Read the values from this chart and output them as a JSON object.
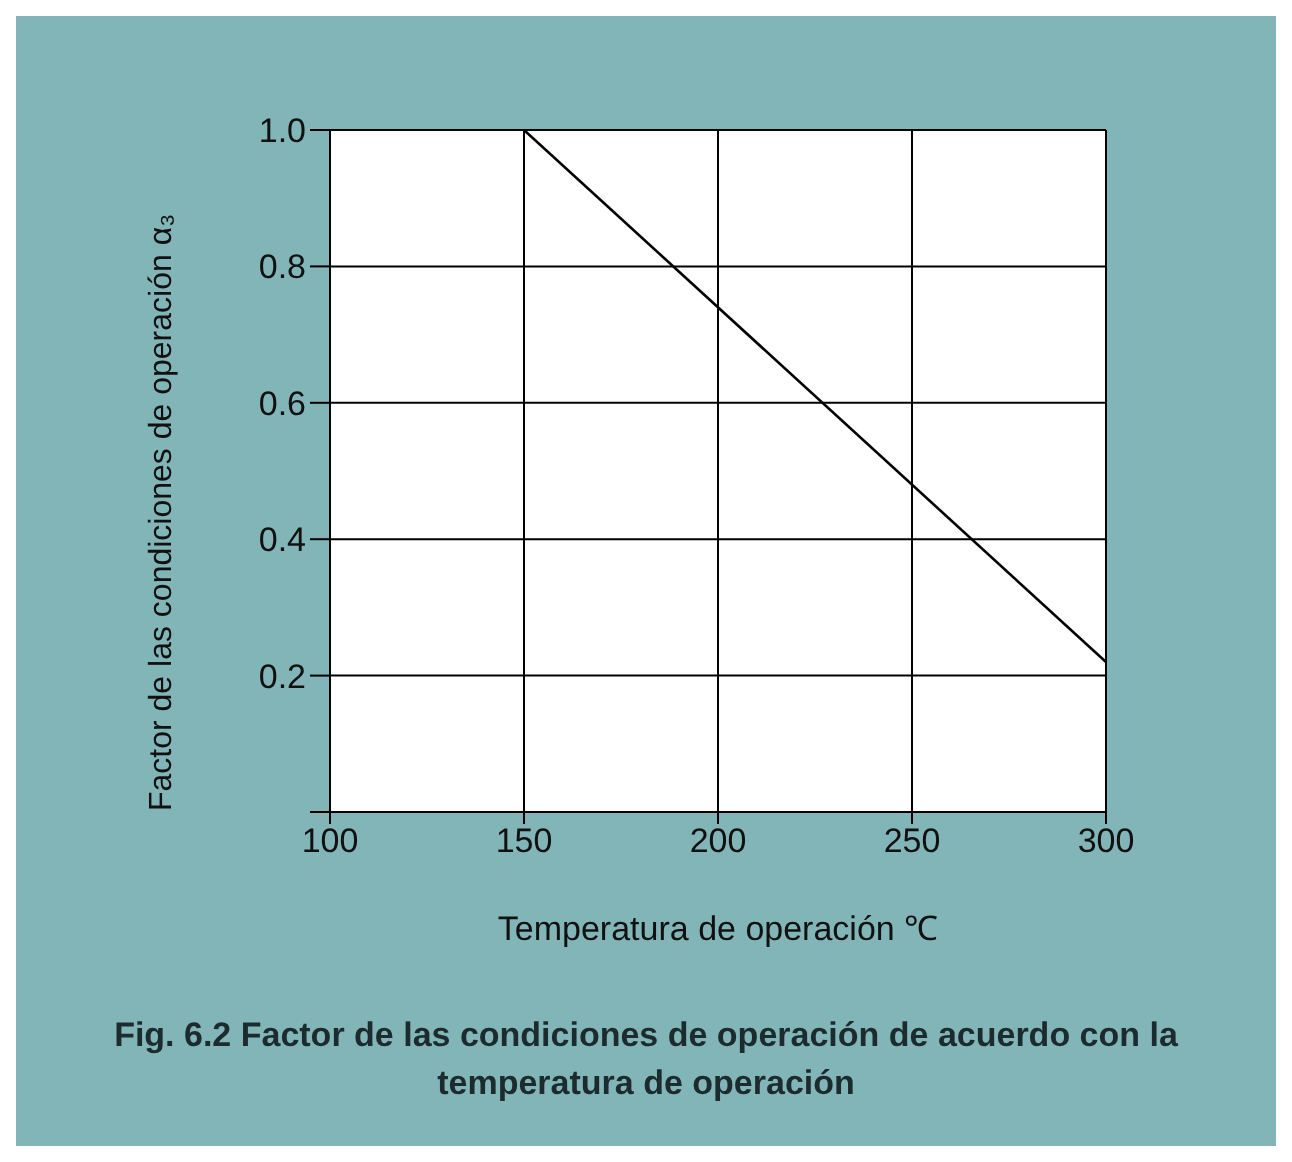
{
  "chart_data": {
    "type": "line",
    "title": "Fig. 6.2 Factor de las condiciones de operación de acuerdo con la temperatura de operación",
    "xlabel": "Temperatura de operación ℃",
    "ylabel": "Factor de las condiciones de operación α₃",
    "x": [
      150,
      300
    ],
    "values": [
      1.0,
      0.22
    ],
    "color": "#000000",
    "xlim": [
      100,
      300
    ],
    "xticks": [
      100,
      150,
      200,
      250,
      300
    ],
    "ylim": [
      0,
      1
    ],
    "yticks": [
      {
        "value": 0,
        "label": null
      },
      0.2,
      0.4,
      0.6,
      0.8,
      {
        "value": 1,
        "label": "1.0"
      }
    ],
    "grid": true
  }
}
